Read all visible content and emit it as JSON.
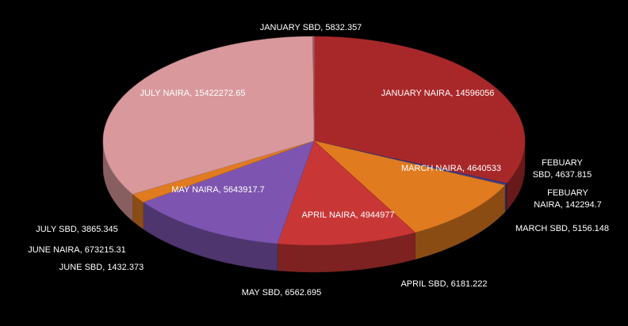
{
  "chart_data": {
    "type": "pie",
    "style": "3d",
    "background": "#000000",
    "label_color": "#ffffff",
    "slices": [
      {
        "label": "JANUARY NAIRA, 14596056",
        "value": 14596056,
        "color": "#a8282a"
      },
      {
        "label": "FEBUARY NAIRA, 142294.7",
        "value": 142294.7,
        "color": "#3a3a8a"
      },
      {
        "label": "MARCH NAIRA, 4640533",
        "value": 4640533,
        "color": "#e07b20"
      },
      {
        "label": "APRIL NAIRA, 4944977",
        "value": 4944977,
        "color": "#c93636"
      },
      {
        "label": "MAY NAIRA, 5643917.7",
        "value": 5643917.7,
        "color": "#7d55b0"
      },
      {
        "label": "JUNE NAIRA, 673215.31",
        "value": 673215.31,
        "color": "#e07b20"
      },
      {
        "label": "JULY NAIRA, 15422272.65",
        "value": 15422272.65,
        "color": "#d9999c"
      },
      {
        "label": "JANUARY SBD, 5832.357",
        "value": 5832.357,
        "color": "#a8282a"
      },
      {
        "label": "FEBUARY SBD, 4637.815",
        "value": 4637.815,
        "color": "#3a3a8a"
      },
      {
        "label": "MARCH SBD, 5156.148",
        "value": 5156.148,
        "color": "#e07b20"
      },
      {
        "label": "APRIL SBD, 6181.222",
        "value": 6181.222,
        "color": "#c93636"
      },
      {
        "label": "MAY SBD, 6562.695",
        "value": 6562.695,
        "color": "#7d55b0"
      },
      {
        "label": "JUNE SBD, 1432.373",
        "value": 1432.373,
        "color": "#e07b20"
      },
      {
        "label": "JULY SBD, 3865.345",
        "value": 3865.345,
        "color": "#d9999c"
      }
    ]
  }
}
